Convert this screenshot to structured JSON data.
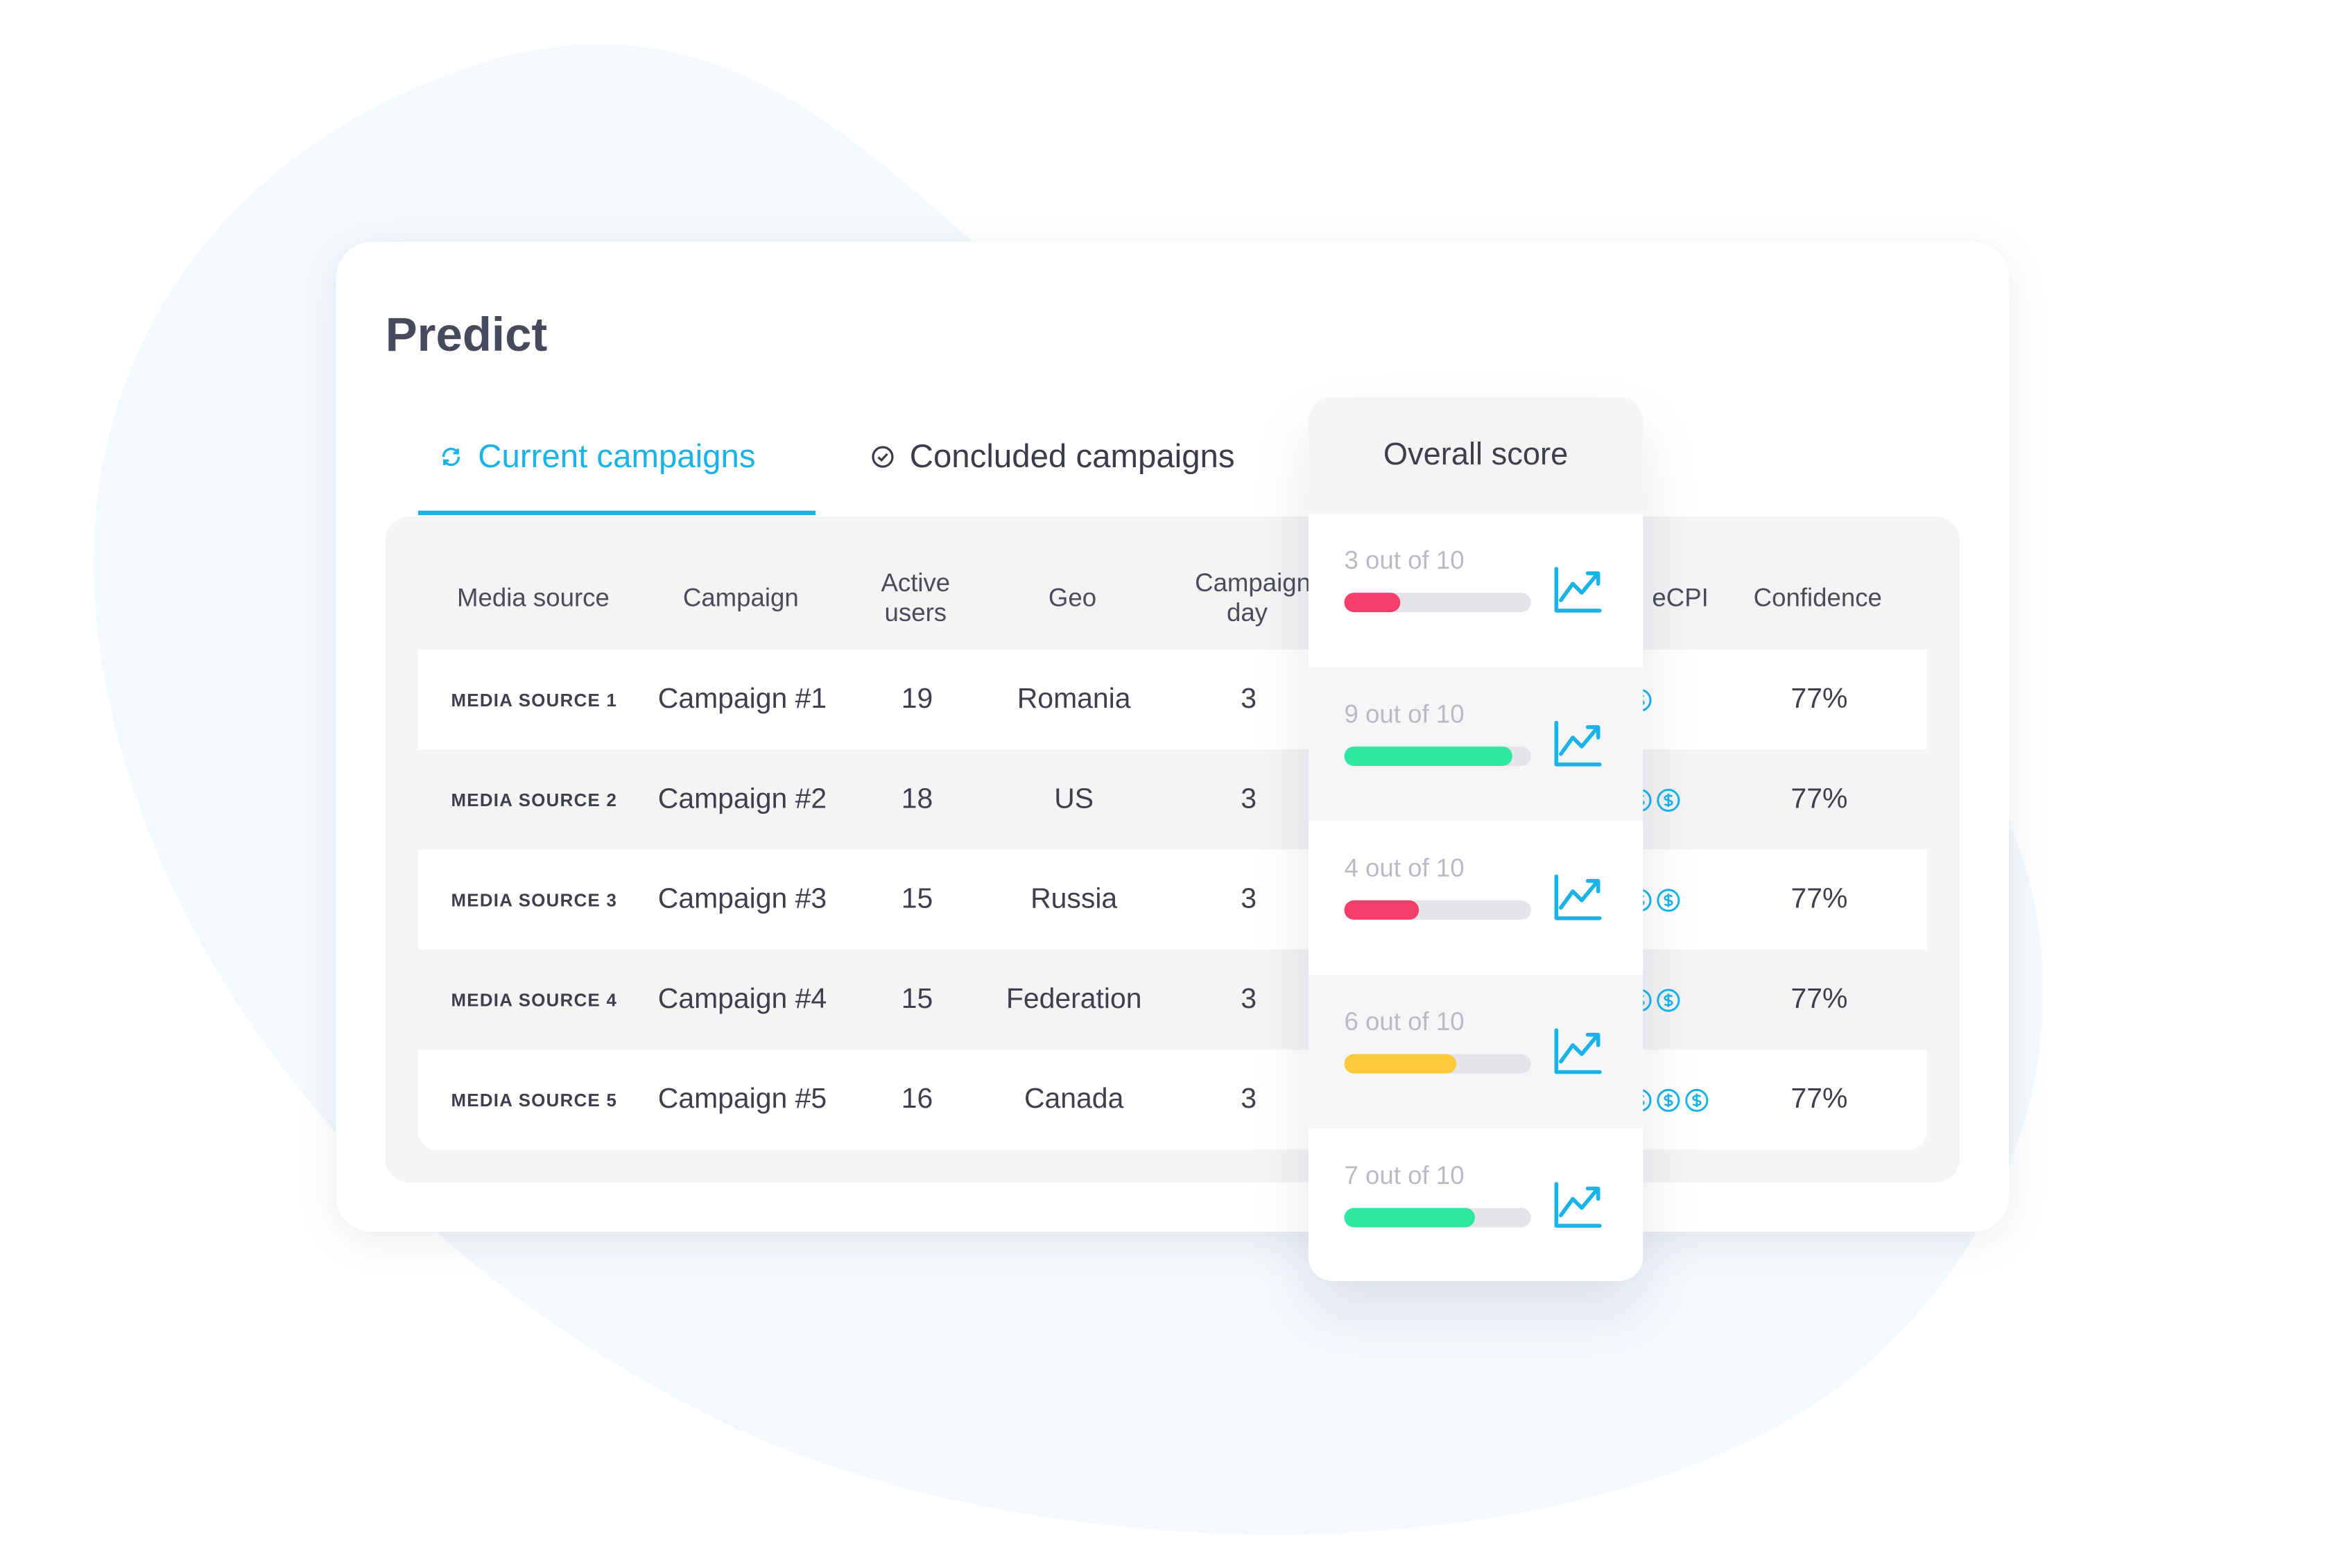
{
  "header": {
    "title": "Predict"
  },
  "tabs": [
    "Current campaigns",
    "Concluded campaigns"
  ],
  "table": {
    "columns": [
      "Media source",
      "Campaign",
      "Active users",
      "Geo",
      "Campaign day",
      "eCPI",
      "Confidence"
    ],
    "rows": [
      [
        "MEDIA SOURCE 1",
        "Campaign #1",
        19,
        "Romania",
        3,
        1,
        "77%"
      ],
      [
        "MEDIA SOURCE 2",
        "Campaign #2",
        18,
        "US",
        3,
        2,
        "77%"
      ],
      [
        "MEDIA SOURCE 3",
        "Campaign #3",
        15,
        "Russia",
        3,
        2,
        "77%"
      ],
      [
        "MEDIA SOURCE 4",
        "Campaign #4",
        15,
        "Federation",
        3,
        2,
        "77%"
      ],
      [
        "MEDIA SOURCE 5",
        "Campaign #5",
        16,
        "Canada",
        3,
        3,
        "77%"
      ]
    ]
  },
  "score_panel": {
    "title": "Overall score",
    "scores": [
      {
        "label": "3 out of 10",
        "value": 3,
        "max": 10,
        "color": "#f43f6b"
      },
      {
        "label": "9 out of 10",
        "value": 9,
        "max": 10,
        "color": "#2ee8a0"
      },
      {
        "label": "4 out of 10",
        "value": 4,
        "max": 10,
        "color": "#f43f6b"
      },
      {
        "label": "6 out of 10",
        "value": 6,
        "max": 10,
        "color": "#fbc93a"
      },
      {
        "label": "7 out of 10",
        "value": 7,
        "max": 10,
        "color": "#2ee8a0"
      }
    ]
  }
}
